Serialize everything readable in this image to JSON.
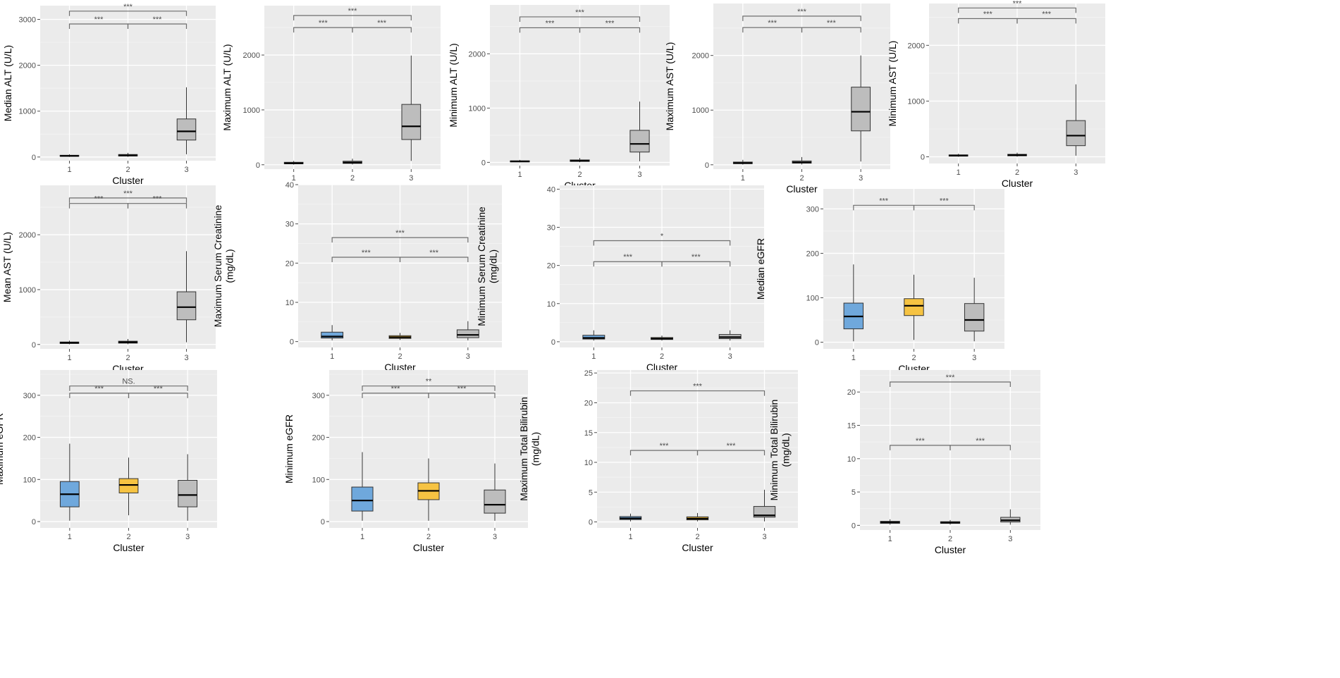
{
  "colors": {
    "cluster1": "#6fa8dc",
    "cluster2": "#f6c342",
    "cluster3": "#bdbdbd",
    "neutral": "#bdbdbd"
  },
  "chart_data": [
    {
      "type": "box",
      "ylabel": "Median ALT (U/L)",
      "xlabel": "Cluster",
      "categories": [
        "1",
        "2",
        "3"
      ],
      "ylim": [
        -80,
        3300
      ],
      "yticks": [
        0,
        1000,
        2000,
        3000
      ],
      "fills": [
        "neutral",
        "neutral",
        "neutral"
      ],
      "boxes": [
        {
          "min": 2,
          "q1": 15,
          "median": 25,
          "q3": 38,
          "max": 60
        },
        {
          "min": 5,
          "q1": 22,
          "median": 35,
          "q3": 55,
          "max": 90
        },
        {
          "min": 60,
          "q1": 370,
          "median": 560,
          "q3": 830,
          "max": 1520
        }
      ],
      "brackets": [
        {
          "from": 1,
          "to": 3,
          "y": 3180,
          "label": "***"
        },
        {
          "from": 1,
          "to": 2,
          "y": 2900,
          "label": "***"
        },
        {
          "from": 2,
          "to": 3,
          "y": 2900,
          "label": "***"
        }
      ]
    },
    {
      "type": "box",
      "ylabel": "Maximum ALT (U/L)",
      "xlabel": "Cluster",
      "categories": [
        "1",
        "2",
        "3"
      ],
      "ylim": [
        -80,
        2900
      ],
      "yticks": [
        0,
        1000,
        2000
      ],
      "fills": [
        "neutral",
        "neutral",
        "neutral"
      ],
      "boxes": [
        {
          "min": 3,
          "q1": 18,
          "median": 28,
          "q3": 45,
          "max": 70
        },
        {
          "min": 5,
          "q1": 25,
          "median": 40,
          "q3": 65,
          "max": 110
        },
        {
          "min": 70,
          "q1": 460,
          "median": 700,
          "q3": 1100,
          "max": 1990
        }
      ],
      "brackets": [
        {
          "from": 1,
          "to": 3,
          "y": 2720,
          "label": "***"
        },
        {
          "from": 1,
          "to": 2,
          "y": 2500,
          "label": "***"
        },
        {
          "from": 2,
          "to": 3,
          "y": 2500,
          "label": "***"
        }
      ]
    },
    {
      "type": "box",
      "ylabel": "Minimum ALT (U/L)",
      "xlabel": "Cluster",
      "categories": [
        "1",
        "2",
        "3"
      ],
      "ylim": [
        -60,
        2900
      ],
      "yticks": [
        0,
        1000,
        2000
      ],
      "fills": [
        "neutral",
        "neutral",
        "neutral"
      ],
      "boxes": [
        {
          "min": 2,
          "q1": 10,
          "median": 18,
          "q3": 28,
          "max": 45
        },
        {
          "min": 3,
          "q1": 18,
          "median": 28,
          "q3": 45,
          "max": 80
        },
        {
          "min": 20,
          "q1": 190,
          "median": 340,
          "q3": 590,
          "max": 1120
        }
      ],
      "brackets": [
        {
          "from": 1,
          "to": 3,
          "y": 2680,
          "label": "***"
        },
        {
          "from": 1,
          "to": 2,
          "y": 2480,
          "label": "***"
        },
        {
          "from": 2,
          "to": 3,
          "y": 2480,
          "label": "***"
        }
      ]
    },
    {
      "type": "box",
      "ylabel": "Maximum AST (U/L)",
      "xlabel": "Cluster",
      "categories": [
        "1",
        "2",
        "3"
      ],
      "ylim": [
        -80,
        2950
      ],
      "yticks": [
        0,
        1000,
        2000
      ],
      "fills": [
        "neutral",
        "neutral",
        "neutral"
      ],
      "boxes": [
        {
          "min": 3,
          "q1": 20,
          "median": 32,
          "q3": 50,
          "max": 90
        },
        {
          "min": 5,
          "q1": 30,
          "median": 45,
          "q3": 70,
          "max": 140
        },
        {
          "min": 60,
          "q1": 620,
          "median": 970,
          "q3": 1420,
          "max": 2000
        }
      ],
      "brackets": [
        {
          "from": 1,
          "to": 3,
          "y": 2720,
          "label": "***"
        },
        {
          "from": 1,
          "to": 2,
          "y": 2510,
          "label": "***"
        },
        {
          "from": 2,
          "to": 3,
          "y": 2510,
          "label": "***"
        }
      ]
    },
    {
      "type": "box",
      "ylabel": "Minimum AST (U/L)",
      "xlabel": "Cluster",
      "categories": [
        "1",
        "2",
        "3"
      ],
      "ylim": [
        -120,
        2750
      ],
      "yticks": [
        0,
        1000,
        2000
      ],
      "fills": [
        "neutral",
        "neutral",
        "neutral"
      ],
      "boxes": [
        {
          "min": 2,
          "q1": 12,
          "median": 22,
          "q3": 35,
          "max": 55
        },
        {
          "min": 3,
          "q1": 18,
          "median": 30,
          "q3": 45,
          "max": 75
        },
        {
          "min": 20,
          "q1": 200,
          "median": 380,
          "q3": 650,
          "max": 1300
        }
      ],
      "brackets": [
        {
          "from": 1,
          "to": 3,
          "y": 2670,
          "label": "***"
        },
        {
          "from": 1,
          "to": 2,
          "y": 2480,
          "label": "***"
        },
        {
          "from": 2,
          "to": 3,
          "y": 2480,
          "label": "***"
        }
      ]
    },
    {
      "type": "box",
      "ylabel": "Mean AST (U/L)",
      "xlabel": "Cluster",
      "categories": [
        "1",
        "2",
        "3"
      ],
      "ylim": [
        -80,
        2900
      ],
      "yticks": [
        0,
        1000,
        2000
      ],
      "fills": [
        "neutral",
        "neutral",
        "neutral"
      ],
      "boxes": [
        {
          "min": 3,
          "q1": 18,
          "median": 30,
          "q3": 45,
          "max": 70
        },
        {
          "min": 5,
          "q1": 25,
          "median": 40,
          "q3": 60,
          "max": 100
        },
        {
          "min": 40,
          "q1": 450,
          "median": 680,
          "q3": 960,
          "max": 1700
        }
      ],
      "brackets": [
        {
          "from": 1,
          "to": 3,
          "y": 2670,
          "label": "***"
        },
        {
          "from": 1,
          "to": 2,
          "y": 2570,
          "label": "***"
        },
        {
          "from": 2,
          "to": 3,
          "y": 2570,
          "label": "***"
        }
      ]
    },
    {
      "type": "box",
      "ylabel": "Maximum Serum Creatinine (mg/dL)",
      "xlabel": "Cluster",
      "categories": [
        "1",
        "2",
        "3"
      ],
      "ylim": [
        -1.5,
        40
      ],
      "yticks": [
        0,
        10,
        20,
        30,
        40
      ],
      "fills": [
        "cluster1",
        "cluster2",
        "neutral"
      ],
      "boxes": [
        {
          "min": 0.3,
          "q1": 0.9,
          "median": 1.3,
          "q3": 2.4,
          "max": 4.2
        },
        {
          "min": 0.4,
          "q1": 0.8,
          "median": 1.1,
          "q3": 1.5,
          "max": 2.2
        },
        {
          "min": 0.3,
          "q1": 1.0,
          "median": 1.7,
          "q3": 3.0,
          "max": 5.2
        }
      ],
      "brackets": [
        {
          "from": 1,
          "to": 3,
          "y": 26.5,
          "label": "***"
        },
        {
          "from": 1,
          "to": 2,
          "y": 21.5,
          "label": "***"
        },
        {
          "from": 2,
          "to": 3,
          "y": 21.5,
          "label": "***"
        }
      ]
    },
    {
      "type": "box",
      "ylabel": "Minimum Serum Creatinine (mg/dL)",
      "xlabel": "Cluster",
      "categories": [
        "1",
        "2",
        "3"
      ],
      "ylim": [
        -1.5,
        41
      ],
      "yticks": [
        0,
        10,
        20,
        30,
        40
      ],
      "fills": [
        "cluster1",
        "cluster2",
        "neutral"
      ],
      "boxes": [
        {
          "min": 0.3,
          "q1": 0.7,
          "median": 1.0,
          "q3": 1.7,
          "max": 3.0
        },
        {
          "min": 0.3,
          "q1": 0.6,
          "median": 0.8,
          "q3": 1.1,
          "max": 1.6
        },
        {
          "min": 0.3,
          "q1": 0.8,
          "median": 1.2,
          "q3": 1.9,
          "max": 3.0
        }
      ],
      "brackets": [
        {
          "from": 1,
          "to": 3,
          "y": 26.5,
          "label": "*"
        },
        {
          "from": 1,
          "to": 2,
          "y": 21,
          "label": "***"
        },
        {
          "from": 2,
          "to": 3,
          "y": 21,
          "label": "***"
        }
      ]
    },
    {
      "type": "box",
      "ylabel": "Median eGFR",
      "xlabel": "Cluster",
      "categories": [
        "1",
        "2",
        "3"
      ],
      "ylim": [
        -15,
        345
      ],
      "yticks": [
        0,
        100,
        200,
        300
      ],
      "fills": [
        "cluster1",
        "cluster2",
        "neutral"
      ],
      "boxes": [
        {
          "min": 2,
          "q1": 30,
          "median": 58,
          "q3": 88,
          "max": 175
        },
        {
          "min": 5,
          "q1": 60,
          "median": 82,
          "q3": 98,
          "max": 152
        },
        {
          "min": 2,
          "q1": 25,
          "median": 50,
          "q3": 87,
          "max": 145
        }
      ],
      "brackets": [
        {
          "from": 1,
          "to": 2,
          "y": 308,
          "label": "***"
        },
        {
          "from": 2,
          "to": 3,
          "y": 308,
          "label": "***"
        }
      ]
    },
    {
      "type": "box",
      "ylabel": "Maximum eGFR",
      "xlabel": "Cluster",
      "categories": [
        "1",
        "2",
        "3"
      ],
      "ylim": [
        -15,
        360
      ],
      "yticks": [
        0,
        100,
        200,
        300
      ],
      "fills": [
        "cluster1",
        "cluster2",
        "neutral"
      ],
      "boxes": [
        {
          "min": 2,
          "q1": 35,
          "median": 65,
          "q3": 95,
          "max": 185
        },
        {
          "min": 15,
          "q1": 68,
          "median": 87,
          "q3": 102,
          "max": 152
        },
        {
          "min": 2,
          "q1": 35,
          "median": 63,
          "q3": 98,
          "max": 160
        }
      ],
      "brackets": [
        {
          "from": 1,
          "to": 3,
          "y": 322,
          "label": "NS."
        },
        {
          "from": 1,
          "to": 2,
          "y": 305,
          "label": "***"
        },
        {
          "from": 2,
          "to": 3,
          "y": 305,
          "label": "***"
        }
      ]
    },
    {
      "type": "box",
      "ylabel": "Minimum eGFR",
      "xlabel": "Cluster",
      "categories": [
        "1",
        "2",
        "3"
      ],
      "ylim": [
        -15,
        360
      ],
      "yticks": [
        0,
        100,
        200,
        300
      ],
      "fills": [
        "cluster1",
        "cluster2",
        "neutral"
      ],
      "boxes": [
        {
          "min": 2,
          "q1": 25,
          "median": 50,
          "q3": 82,
          "max": 165
        },
        {
          "min": 2,
          "q1": 52,
          "median": 73,
          "q3": 92,
          "max": 150
        },
        {
          "min": 2,
          "q1": 20,
          "median": 40,
          "q3": 75,
          "max": 138
        }
      ],
      "brackets": [
        {
          "from": 1,
          "to": 3,
          "y": 322,
          "label": "**"
        },
        {
          "from": 1,
          "to": 2,
          "y": 305,
          "label": "***"
        },
        {
          "from": 2,
          "to": 3,
          "y": 305,
          "label": "***"
        }
      ]
    },
    {
      "type": "box",
      "ylabel": "Maximum Total Bilirubin (mg/dL)",
      "xlabel": "Cluster",
      "categories": [
        "1",
        "2",
        "3"
      ],
      "ylim": [
        -1,
        25.5
      ],
      "yticks": [
        0,
        5,
        10,
        15,
        20,
        25
      ],
      "fills": [
        "cluster1",
        "cluster2",
        "neutral"
      ],
      "boxes": [
        {
          "min": 0.1,
          "q1": 0.4,
          "median": 0.6,
          "q3": 0.9,
          "max": 1.4
        },
        {
          "min": 0.1,
          "q1": 0.35,
          "median": 0.55,
          "q3": 0.85,
          "max": 1.5
        },
        {
          "min": 0.1,
          "q1": 0.8,
          "median": 1.1,
          "q3": 2.6,
          "max": 5.4
        }
      ],
      "brackets": [
        {
          "from": 1,
          "to": 3,
          "y": 22,
          "label": "***"
        },
        {
          "from": 1,
          "to": 2,
          "y": 12,
          "label": "***"
        },
        {
          "from": 2,
          "to": 3,
          "y": 12,
          "label": "***"
        }
      ]
    },
    {
      "type": "box",
      "ylabel": "Minimum Total Bilirubin (mg/dL)",
      "xlabel": "Cluster",
      "categories": [
        "1",
        "2",
        "3"
      ],
      "ylim": [
        -0.7,
        23.3
      ],
      "yticks": [
        0,
        5,
        10,
        15,
        20
      ],
      "fills": [
        "cluster1",
        "cluster2",
        "neutral"
      ],
      "boxes": [
        {
          "min": 0.1,
          "q1": 0.3,
          "median": 0.45,
          "q3": 0.6,
          "max": 0.9
        },
        {
          "min": 0.1,
          "q1": 0.3,
          "median": 0.4,
          "q3": 0.55,
          "max": 0.8
        },
        {
          "min": 0.1,
          "q1": 0.5,
          "median": 0.75,
          "q3": 1.2,
          "max": 2.4
        }
      ],
      "brackets": [
        {
          "from": 1,
          "to": 3,
          "y": 21.5,
          "label": "***"
        },
        {
          "from": 1,
          "to": 2,
          "y": 12,
          "label": "***"
        },
        {
          "from": 2,
          "to": 3,
          "y": 12,
          "label": "***"
        }
      ]
    }
  ]
}
